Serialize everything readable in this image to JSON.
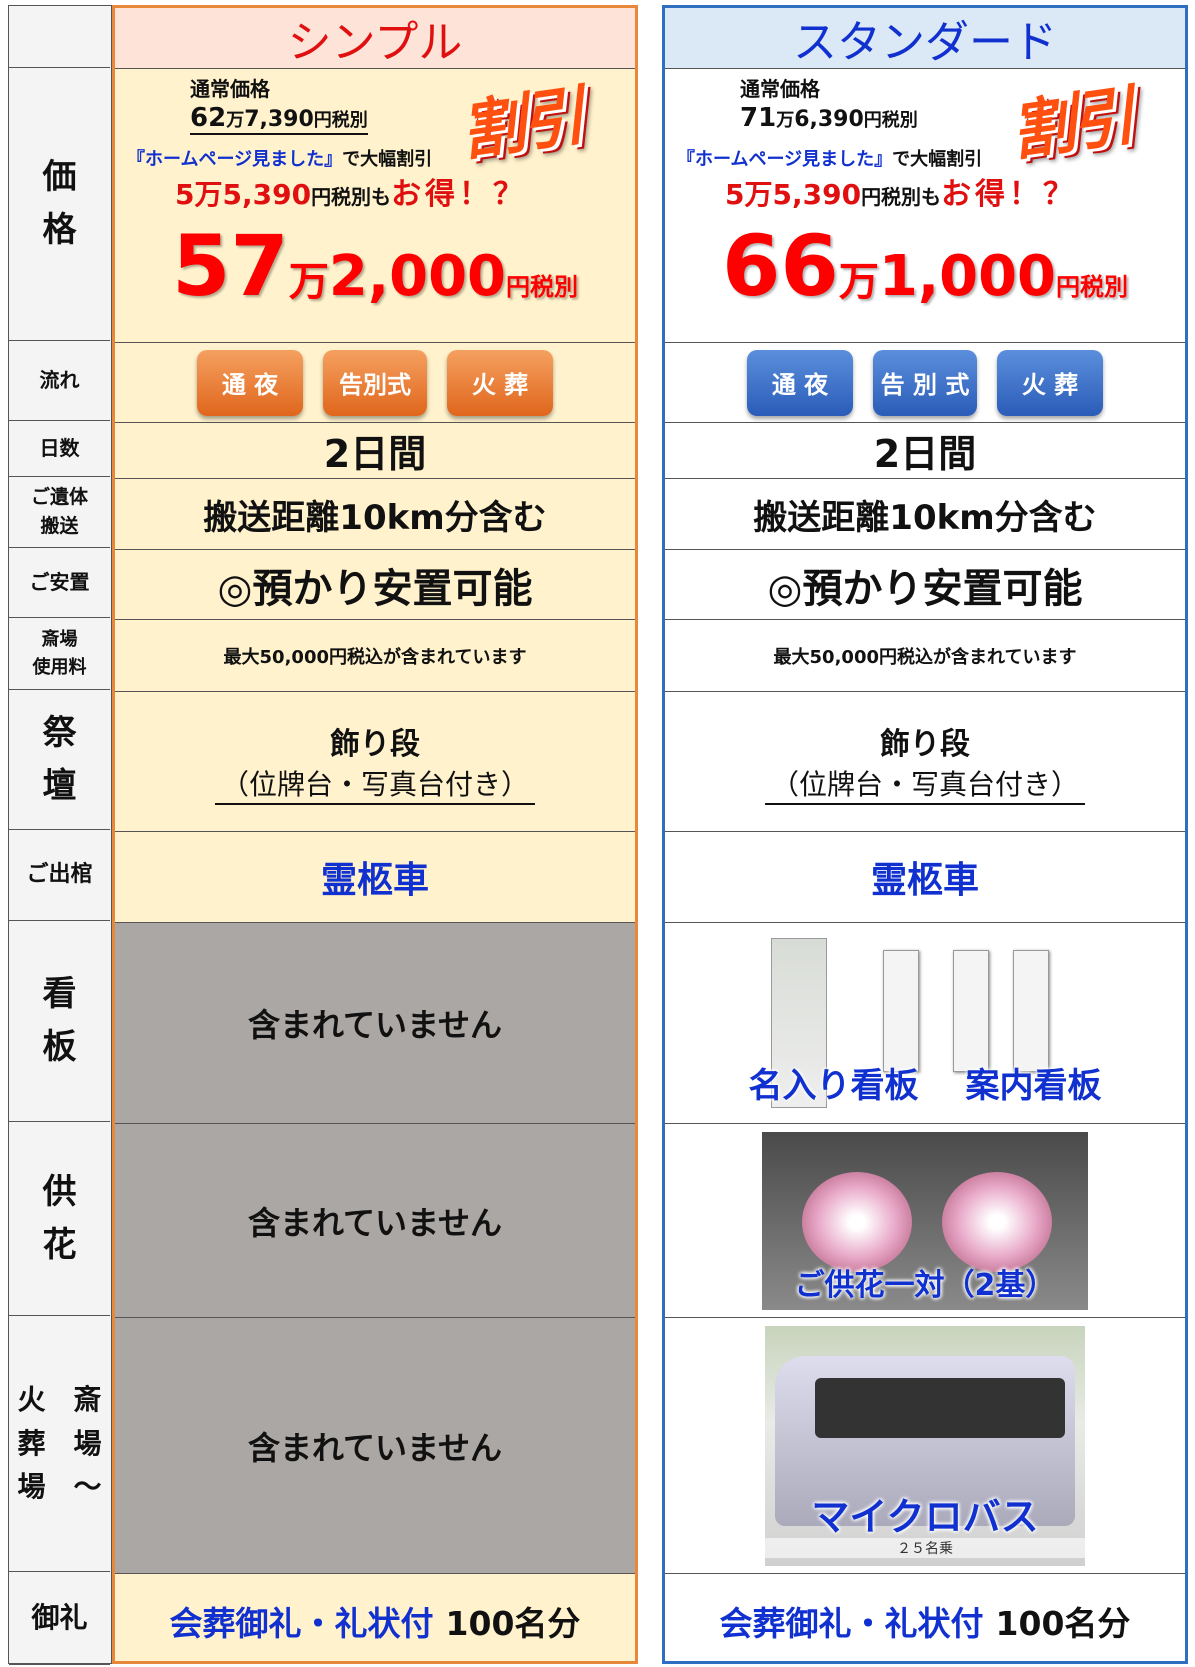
{
  "row_labels": [
    [
      "価",
      "格"
    ],
    [
      "流れ"
    ],
    [
      "日数"
    ],
    [
      "ご遺体",
      "搬送"
    ],
    [
      "ご安置"
    ],
    [
      "斎場",
      "使用料"
    ],
    [
      "祭",
      "壇"
    ],
    [
      "ご出棺"
    ],
    [
      "看",
      "板"
    ],
    [
      "供",
      "花"
    ],
    [
      "火　斎",
      "葬　場",
      "場　～"
    ],
    [
      "御礼"
    ]
  ],
  "plans": [
    {
      "header": "シンプル",
      "regular_label": "通常価格",
      "regular_price": [
        "62",
        "万",
        "7,390",
        "円税別"
      ],
      "promo_quote": "『ホームページ見ました』",
      "promo_text": "で大幅割引",
      "discount": [
        "5万5,390",
        "円税別も",
        "お得！？"
      ],
      "badge": "割引",
      "price": [
        "57",
        "万",
        "2,000",
        "円税別"
      ],
      "flow": [
        "通 夜",
        "告別式",
        "火 葬"
      ],
      "days": "2日間",
      "transport": "搬送距離10km分含む",
      "anchi": "◎預かり安置可能",
      "venue": "最大50,000円税込が含まれています",
      "altar": [
        "飾り段",
        "（位牌台・写真台付き）"
      ],
      "hearse": "霊柩車",
      "sign": "含まれていません",
      "flowers": "含まれていません",
      "crem": "含まれていません",
      "thanks": [
        "会葬御礼・礼状付",
        "100名分"
      ]
    },
    {
      "header": "スタンダード",
      "regular_label": "通常価格",
      "regular_price": [
        "71",
        "万",
        "6,390",
        "円税別"
      ],
      "promo_quote": "『ホームページ見ました』",
      "promo_text": "で大幅割引",
      "discount": [
        "5万5,390",
        "円税別も",
        "お得！？"
      ],
      "badge": "割引",
      "price": [
        "66",
        "万",
        "1,000",
        "円税別"
      ],
      "flow": [
        "通 夜",
        "告 別 式",
        "火 葬"
      ],
      "days": "2日間",
      "transport": "搬送距離10km分含む",
      "anchi": "◎預かり安置可能",
      "venue": "最大50,000円税込が含まれています",
      "altar": [
        "飾り段",
        "（位牌台・写真台付き）"
      ],
      "hearse": "霊柩車",
      "sign": [
        "名入り看板",
        "案内看板"
      ],
      "flowers": "ご供花一対（2基）",
      "crem": [
        "マイクロバス",
        "２５名乗"
      ],
      "thanks": [
        "会葬御礼・礼状付",
        "100名分"
      ]
    }
  ]
}
